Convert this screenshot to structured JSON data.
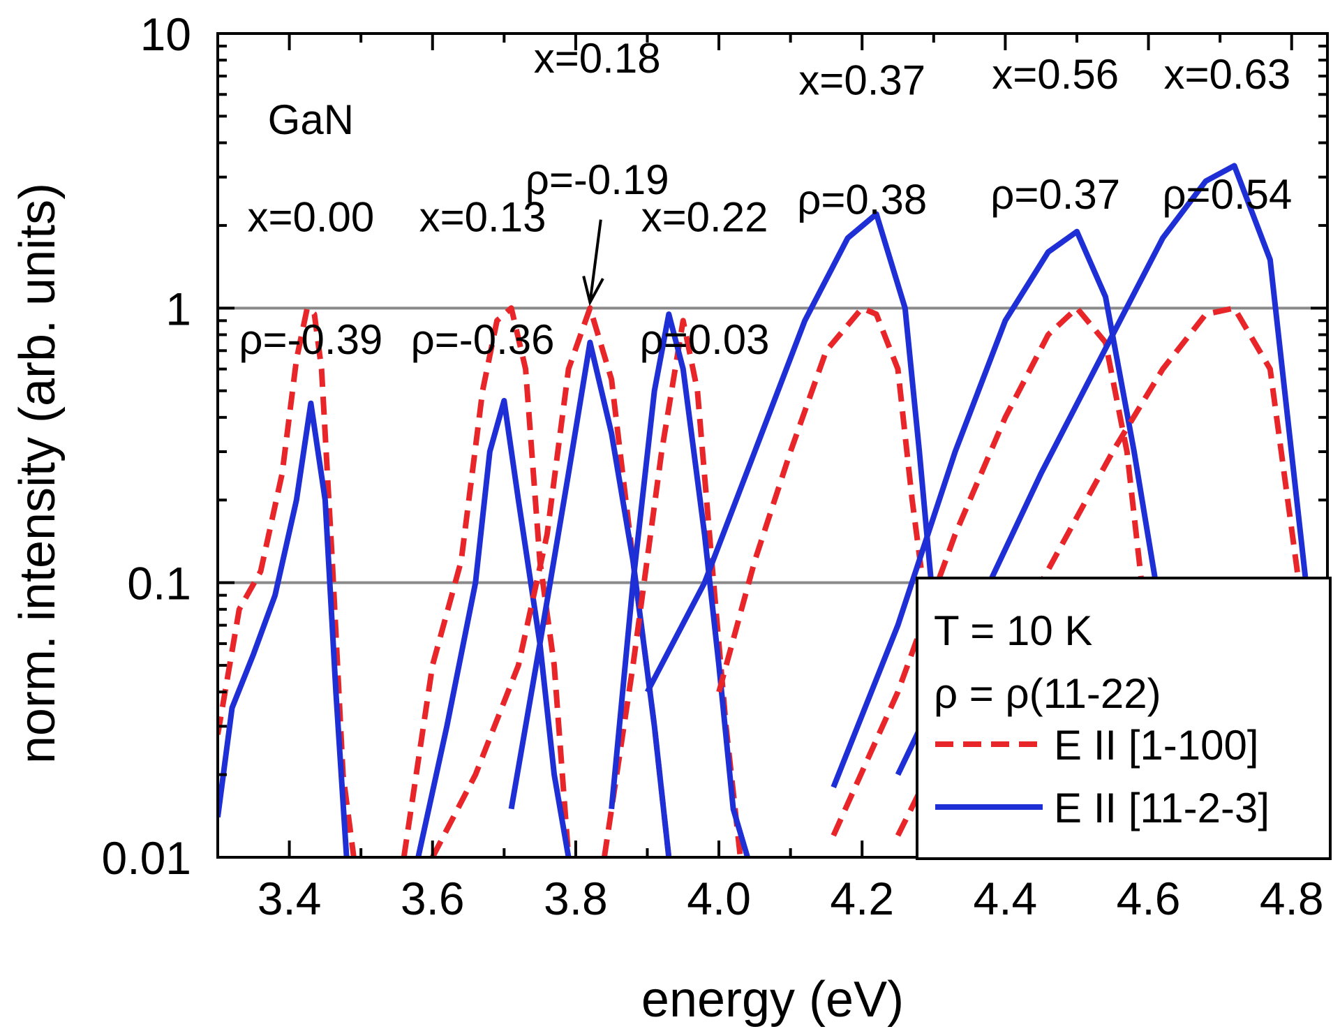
{
  "chart_data": {
    "type": "line",
    "title": "",
    "xlabel": "energy (eV)",
    "ylabel": "norm. intensity (arb. units)",
    "xlim": [
      3.3,
      4.85
    ],
    "ylim": [
      0.01,
      10
    ],
    "yscale": "log",
    "x_ticks": [
      "3.4",
      "3.6",
      "3.8",
      "4.0",
      "4.2",
      "4.4",
      "4.6",
      "4.8"
    ],
    "y_ticks": [
      "0.01",
      "0.1",
      "1",
      "10"
    ],
    "gridlines_y": [
      0.1,
      1
    ],
    "legend": {
      "position": "bottom-right",
      "header": [
        "T = 10 K",
        "ρ = ρ(11-22)"
      ],
      "entries": [
        {
          "label": "E II [1-100]",
          "color": "#e8262a",
          "style": "dashed"
        },
        {
          "label": "E II [11-2-3]",
          "color": "#1f2fd6",
          "style": "solid"
        }
      ]
    },
    "sample_labels": [
      {
        "text": "GaN",
        "x": 3.43,
        "y": 4.3
      },
      {
        "text": "x=0.00",
        "x": 3.43,
        "y": 1.9
      },
      {
        "text": "ρ=-0.39",
        "x": 3.43,
        "y": 0.68
      },
      {
        "text": "x=0.13",
        "x": 3.67,
        "y": 1.9
      },
      {
        "text": "ρ=-0.36",
        "x": 3.67,
        "y": 0.68
      },
      {
        "text": "x=0.18",
        "x": 3.83,
        "y": 7.2
      },
      {
        "text": "ρ=-0.19",
        "x": 3.83,
        "y": 2.6
      },
      {
        "text": "x=0.22",
        "x": 3.98,
        "y": 1.9
      },
      {
        "text": "ρ=0.03",
        "x": 3.98,
        "y": 0.68
      },
      {
        "text": "x=0.37",
        "x": 4.2,
        "y": 6.0
      },
      {
        "text": "ρ=0.38",
        "x": 4.2,
        "y": 2.2
      },
      {
        "text": "x=0.56",
        "x": 4.47,
        "y": 6.3
      },
      {
        "text": "ρ=0.37",
        "x": 4.47,
        "y": 2.3
      },
      {
        "text": "x=0.63",
        "x": 4.71,
        "y": 6.3
      },
      {
        "text": "ρ=0.54",
        "x": 4.71,
        "y": 2.3
      }
    ],
    "arrow": {
      "from": [
        3.835,
        2.1
      ],
      "to": [
        3.82,
        1.05
      ]
    },
    "series": [
      {
        "group": "x=0.00",
        "style": "dashed",
        "color": "#e8262a",
        "x": [
          3.3,
          3.33,
          3.36,
          3.39,
          3.41,
          3.425,
          3.435,
          3.445,
          3.46,
          3.475,
          3.49
        ],
        "y": [
          0.028,
          0.08,
          0.11,
          0.25,
          0.65,
          1.0,
          0.95,
          0.6,
          0.12,
          0.02,
          0.01
        ]
      },
      {
        "group": "x=0.00",
        "style": "solid",
        "color": "#1f2fd6",
        "x": [
          3.3,
          3.32,
          3.35,
          3.38,
          3.41,
          3.43,
          3.45,
          3.465,
          3.48
        ],
        "y": [
          0.014,
          0.035,
          0.055,
          0.09,
          0.2,
          0.45,
          0.2,
          0.04,
          0.01
        ]
      },
      {
        "group": "x=0.13",
        "style": "dashed",
        "color": "#e8262a",
        "x": [
          3.56,
          3.6,
          3.64,
          3.67,
          3.69,
          3.71,
          3.73,
          3.75,
          3.77,
          3.79
        ],
        "y": [
          0.01,
          0.05,
          0.12,
          0.5,
          0.9,
          1.0,
          0.6,
          0.12,
          0.05,
          0.01
        ]
      },
      {
        "group": "x=0.13",
        "style": "solid",
        "color": "#1f2fd6",
        "x": [
          3.58,
          3.62,
          3.66,
          3.68,
          3.7,
          3.72,
          3.75,
          3.77,
          3.79
        ],
        "y": [
          0.01,
          0.03,
          0.1,
          0.3,
          0.46,
          0.2,
          0.06,
          0.02,
          0.01
        ]
      },
      {
        "group": "x=0.18",
        "style": "dashed",
        "color": "#e8262a",
        "x": [
          3.6,
          3.66,
          3.72,
          3.76,
          3.79,
          3.82,
          3.85,
          3.88,
          3.91,
          3.93
        ],
        "y": [
          0.01,
          0.02,
          0.05,
          0.15,
          0.6,
          1.0,
          0.55,
          0.12,
          0.03,
          0.01
        ]
      },
      {
        "group": "x=0.18",
        "style": "solid",
        "color": "#1f2fd6",
        "x": [
          3.71,
          3.75,
          3.79,
          3.82,
          3.85,
          3.88,
          3.91,
          3.93
        ],
        "y": [
          0.015,
          0.06,
          0.25,
          0.75,
          0.35,
          0.12,
          0.03,
          0.01
        ]
      },
      {
        "group": "x=0.22",
        "style": "dashed",
        "color": "#e8262a",
        "x": [
          3.84,
          3.88,
          3.92,
          3.95,
          3.97,
          3.99,
          4.01,
          4.03
        ],
        "y": [
          0.01,
          0.05,
          0.3,
          0.9,
          0.5,
          0.12,
          0.03,
          0.01
        ]
      },
      {
        "group": "x=0.22",
        "style": "solid",
        "color": "#1f2fd6",
        "x": [
          3.85,
          3.88,
          3.91,
          3.93,
          3.95,
          3.98,
          4.0,
          4.02,
          4.04
        ],
        "y": [
          0.015,
          0.1,
          0.5,
          0.95,
          0.6,
          0.15,
          0.05,
          0.015,
          0.01
        ]
      },
      {
        "group": "x=0.37",
        "style": "dashed",
        "color": "#e8262a",
        "x": [
          4.0,
          4.05,
          4.1,
          4.15,
          4.2,
          4.22,
          4.25,
          4.27,
          4.3
        ],
        "y": [
          0.04,
          0.12,
          0.3,
          0.7,
          1.0,
          0.95,
          0.6,
          0.2,
          0.05
        ]
      },
      {
        "group": "x=0.37",
        "style": "solid",
        "color": "#1f2fd6",
        "x": [
          3.9,
          3.98,
          4.05,
          4.12,
          4.18,
          4.22,
          4.26,
          4.28,
          4.3
        ],
        "y": [
          0.04,
          0.1,
          0.3,
          0.9,
          1.8,
          2.2,
          1.0,
          0.3,
          0.08
        ]
      },
      {
        "group": "x=0.56",
        "style": "dashed",
        "color": "#e8262a",
        "x": [
          4.16,
          4.25,
          4.33,
          4.4,
          4.46,
          4.5,
          4.54,
          4.57,
          4.6
        ],
        "y": [
          0.012,
          0.04,
          0.15,
          0.4,
          0.8,
          1.0,
          0.75,
          0.3,
          0.06
        ]
      },
      {
        "group": "x=0.56",
        "style": "solid",
        "color": "#1f2fd6",
        "x": [
          4.16,
          4.25,
          4.33,
          4.4,
          4.46,
          4.5,
          4.54,
          4.58,
          4.62
        ],
        "y": [
          0.018,
          0.07,
          0.3,
          0.9,
          1.6,
          1.9,
          1.1,
          0.3,
          0.07
        ]
      },
      {
        "group": "x=0.63",
        "style": "dashed",
        "color": "#e8262a",
        "x": [
          4.25,
          4.35,
          4.45,
          4.55,
          4.62,
          4.68,
          4.72,
          4.77,
          4.81
        ],
        "y": [
          0.012,
          0.04,
          0.1,
          0.3,
          0.6,
          0.95,
          1.0,
          0.6,
          0.1
        ]
      },
      {
        "group": "x=0.63",
        "style": "solid",
        "color": "#1f2fd6",
        "x": [
          4.25,
          4.35,
          4.45,
          4.55,
          4.62,
          4.68,
          4.72,
          4.77,
          4.82
        ],
        "y": [
          0.02,
          0.07,
          0.25,
          0.8,
          1.8,
          2.9,
          3.3,
          1.5,
          0.1
        ]
      }
    ]
  }
}
